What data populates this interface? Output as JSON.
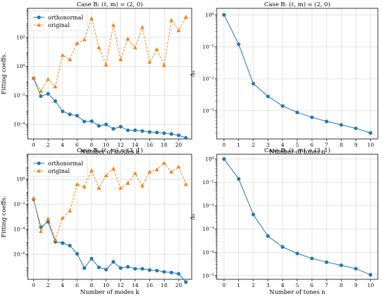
{
  "colors": {
    "orthonormal": "#1f77b4",
    "original": "#ff7f0e",
    "grid": "#d9d9d9"
  },
  "chart_data": [
    {
      "type": "line",
      "title": "Case B:  (ℓ, m) = (2, 0)",
      "xlabel": "Number of modes  k",
      "ylabel": "Fitting coeffs.",
      "yscale": "log",
      "xlim": [
        -0.8,
        21.8
      ],
      "ylim": [
        1e-05,
        10000.0
      ],
      "xticks": [
        0,
        2,
        4,
        6,
        8,
        10,
        12,
        14,
        16,
        18,
        20
      ],
      "yticks": [
        {
          "v": 0.0001,
          "label": "10⁻⁴"
        },
        {
          "v": 0.01,
          "label": "10⁻²"
        },
        {
          "v": 1,
          "label": "10⁰"
        },
        {
          "v": 100,
          "label": "10²"
        }
      ],
      "grid": true,
      "legend": "upper-left",
      "series": [
        {
          "name": "orthonormal",
          "marker": "circle",
          "linestyle": "solid",
          "color": "#1f77b4",
          "x": [
            0,
            1,
            2,
            3,
            4,
            5,
            6,
            7,
            8,
            9,
            10,
            11,
            12,
            13,
            14,
            15,
            16,
            17,
            18,
            19,
            20,
            21
          ],
          "y": [
            0.15,
            0.009,
            0.013,
            0.004,
            0.0008,
            0.0005,
            0.0004,
            0.00016,
            0.00017,
            8e-05,
            0.0001,
            5e-05,
            7e-05,
            4e-05,
            4e-05,
            3.5e-05,
            3e-05,
            2.8e-05,
            2.5e-05,
            2.2e-05,
            1.8e-05,
            1.2e-05
          ]
        },
        {
          "name": "original",
          "marker": "triangle",
          "linestyle": "dashed",
          "color": "#ff7f0e",
          "x": [
            0,
            1,
            2,
            3,
            4,
            5,
            6,
            7,
            8,
            9,
            10,
            11,
            12,
            13,
            14,
            15,
            16,
            17,
            18,
            19,
            20,
            21
          ],
          "y": [
            0.15,
            0.02,
            0.13,
            0.04,
            6,
            3,
            40,
            70,
            2000,
            20,
            1.3,
            700,
            3,
            80,
            20,
            500,
            2,
            15,
            1.2,
            1500,
            300,
            2500
          ]
        }
      ]
    },
    {
      "type": "line",
      "title": "Case B:  (ℓ, m) = (2, 0)",
      "xlabel": "Number of tones  n",
      "ylabel": "Δₙ",
      "yscale": "log",
      "xlim": [
        -0.5,
        10.5
      ],
      "ylim": [
        0.00013,
        1.6
      ],
      "xticks": [
        0,
        1,
        2,
        3,
        4,
        5,
        6,
        7,
        8,
        9,
        10
      ],
      "yticks": [
        {
          "v": 0.001,
          "label": "10⁻³"
        },
        {
          "v": 0.01,
          "label": "10⁻²"
        },
        {
          "v": 0.1,
          "label": "10⁻¹"
        },
        {
          "v": 1,
          "label": "10⁰"
        }
      ],
      "grid": true,
      "legend": "none",
      "series": [
        {
          "marker": "circle",
          "linestyle": "solid",
          "color": "#1f77b4",
          "x": [
            0,
            1,
            2,
            3,
            4,
            5,
            6,
            7,
            8,
            9,
            10
          ],
          "y": [
            1.0,
            0.12,
            0.007,
            0.0028,
            0.0014,
            0.00088,
            0.00062,
            0.00046,
            0.00036,
            0.00028,
            0.0002
          ]
        }
      ]
    },
    {
      "type": "line",
      "title": "Case B:  (ℓ, m) = (3, 1)",
      "xlabel": "Number of modes  k",
      "ylabel": "Fitting coeffs.",
      "yscale": "log",
      "xlim": [
        -0.8,
        21.8
      ],
      "ylim": [
        1e-08,
        100.0
      ],
      "xticks": [
        0,
        2,
        4,
        6,
        8,
        10,
        12,
        14,
        16,
        18,
        20
      ],
      "yticks": [
        {
          "v": 1e-06,
          "label": "10⁻⁶"
        },
        {
          "v": 0.0001,
          "label": "10⁻⁴"
        },
        {
          "v": 0.01,
          "label": "10⁻²"
        },
        {
          "v": 1,
          "label": "10⁰"
        }
      ],
      "grid": true,
      "legend": "upper-left",
      "series": [
        {
          "name": "orthonormal",
          "marker": "circle",
          "linestyle": "solid",
          "color": "#1f77b4",
          "x": [
            0,
            1,
            2,
            3,
            4,
            5,
            6,
            7,
            8,
            9,
            10,
            11,
            12,
            13,
            14,
            15,
            16,
            17,
            18,
            19,
            20,
            21
          ],
          "y": [
            0.025,
            0.00015,
            0.0004,
            1e-05,
            8e-06,
            5e-06,
            1.1e-06,
            8e-08,
            4.5e-07,
            9e-08,
            6e-08,
            2.5e-07,
            8e-08,
            1e-07,
            7e-08,
            7e-08,
            5.5e-08,
            5e-08,
            4e-08,
            3.5e-08,
            2.8e-08,
            6e-09
          ]
        },
        {
          "name": "original",
          "marker": "triangle",
          "linestyle": "dashed",
          "color": "#ff7f0e",
          "x": [
            0,
            1,
            2,
            3,
            4,
            5,
            6,
            7,
            8,
            9,
            10,
            11,
            12,
            13,
            14,
            15,
            16,
            17,
            18,
            19,
            20,
            21
          ],
          "y": [
            0.03,
            7e-05,
            0.0007,
            1.5e-05,
            0.0008,
            0.003,
            0.4,
            0.25,
            5,
            0.2,
            2,
            7,
            0.2,
            0.5,
            3,
            0.3,
            4,
            6,
            20,
            4,
            10,
            0.4
          ]
        }
      ]
    },
    {
      "type": "line",
      "title": "Case B:  (ℓ, m) = (3, 1)",
      "xlabel": "Number of tones  n",
      "ylabel": "Δₙ",
      "yscale": "log",
      "xlim": [
        -0.5,
        10.5
      ],
      "ylim": [
        7e-06,
        1.6
      ],
      "xticks": [
        0,
        1,
        2,
        3,
        4,
        5,
        6,
        7,
        8,
        9,
        10
      ],
      "yticks": [
        {
          "v": 1e-05,
          "label": "10⁻⁵"
        },
        {
          "v": 0.0001,
          "label": "10⁻⁴"
        },
        {
          "v": 0.001,
          "label": "10⁻³"
        },
        {
          "v": 0.01,
          "label": "10⁻²"
        },
        {
          "v": 0.1,
          "label": "10⁻¹"
        },
        {
          "v": 1,
          "label": "10⁰"
        }
      ],
      "grid": true,
      "legend": "none",
      "series": [
        {
          "marker": "circle",
          "linestyle": "solid",
          "color": "#1f77b4",
          "x": [
            0,
            1,
            2,
            3,
            4,
            5,
            6,
            7,
            8,
            9,
            10
          ],
          "y": [
            1.0,
            0.14,
            0.0042,
            0.0005,
            0.00017,
            9e-05,
            5.5e-05,
            3.8e-05,
            2.8e-05,
            2e-05,
            1.1e-05
          ]
        }
      ]
    }
  ]
}
